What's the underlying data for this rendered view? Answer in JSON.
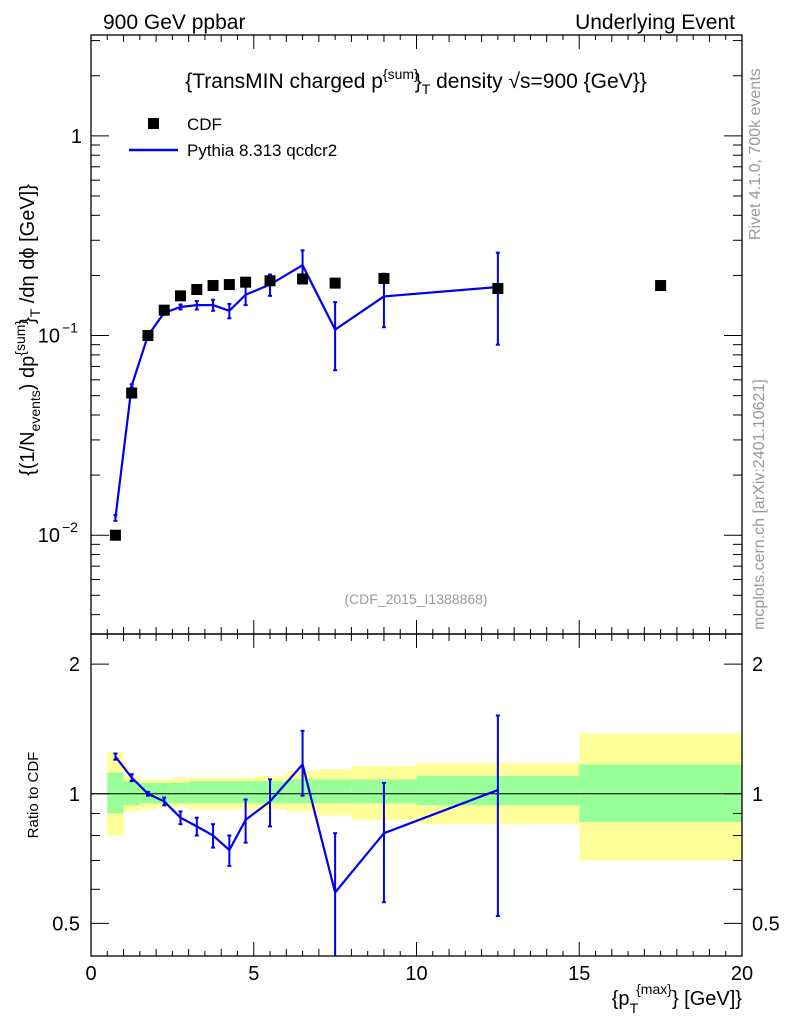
{
  "header": {
    "left": "900 GeV ppbar",
    "right": "Underlying Event"
  },
  "side_labels": {
    "rivet": "Rivet 4.1.0,  700k events",
    "mcplots": "mcplots.cern.ch [arXiv:2401.10621]"
  },
  "main_title": "{TransMIN charged p^{sum}_T density √s=900 {GeV}}",
  "analysis_tag": "(CDF_2015_I1388868)",
  "ylabel_main": "{(1/N_events) dp^{sum}_T /dη dφ [GeV]}",
  "ylabel_ratio": "Ratio to CDF",
  "xlabel": "{p_T^{max}} [GeV]}",
  "colors": {
    "data": "#000000",
    "mc": "#0000ee",
    "band_inner": "#99ff99",
    "band_outer": "#ffff99"
  },
  "chart_data": [
    {
      "type": "scatter",
      "panel": "main",
      "title": "{TransMIN charged p^{sum}_T density √s=900 {GeV}}",
      "xlabel": "{p_T^{max}} [GeV]}",
      "ylabel": "{(1/N_events) dp^{sum}_T /dη dφ [GeV]}",
      "xlim": [
        0,
        20
      ],
      "ylim": [
        0.0032,
        3.2
      ],
      "yscale": "log",
      "y_tick_labels": [
        "10^-2",
        "10^-1",
        "1"
      ],
      "legend": {
        "placement": "top-left",
        "entries": [
          "CDF",
          "Pythia 8.313 qcdcr2"
        ]
      },
      "series": [
        {
          "name": "CDF",
          "style": "markers",
          "x": [
            0.75,
            1.25,
            1.75,
            2.25,
            2.75,
            3.25,
            3.75,
            4.25,
            4.75,
            5.5,
            6.5,
            7.5,
            9.0,
            12.5,
            17.5
          ],
          "y": [
            0.01,
            0.0515,
            0.1,
            0.134,
            0.158,
            0.17,
            0.178,
            0.18,
            0.185,
            0.188,
            0.192,
            0.183,
            0.193,
            0.172,
            0.178
          ]
        },
        {
          "name": "Pythia 8.313 qcdcr2",
          "style": "line",
          "x": [
            0.75,
            1.25,
            1.75,
            2.25,
            2.75,
            3.25,
            3.75,
            4.25,
            4.75,
            5.5,
            6.5,
            7.5,
            9.0,
            12.5
          ],
          "y": [
            0.0122,
            0.056,
            0.1,
            0.13,
            0.139,
            0.142,
            0.142,
            0.133,
            0.16,
            0.18,
            0.225,
            0.107,
            0.157,
            0.175
          ],
          "err_low": [
            0.0004,
            0.001,
            0.001,
            0.003,
            0.004,
            0.007,
            0.009,
            0.011,
            0.018,
            0.022,
            0.035,
            0.04,
            0.047,
            0.085
          ],
          "err_high": [
            0.0004,
            0.001,
            0.001,
            0.003,
            0.004,
            0.007,
            0.009,
            0.011,
            0.018,
            0.022,
            0.042,
            0.04,
            0.047,
            0.085
          ]
        }
      ]
    },
    {
      "type": "line",
      "panel": "ratio",
      "ylabel": "Ratio to CDF",
      "xlabel": "{p_T^{max}} [GeV]}",
      "xlim": [
        0,
        20
      ],
      "ylim": [
        0.42,
        2.35
      ],
      "yscale": "log",
      "x_tick_labels": [
        "0",
        "5",
        "10",
        "15",
        "20"
      ],
      "y_tick_labels": [
        "0.5",
        "1",
        "2"
      ],
      "bands": {
        "x_edges": [
          0.5,
          1.0,
          1.5,
          2.0,
          2.5,
          3.0,
          3.5,
          4.0,
          4.5,
          5.0,
          6.0,
          7.0,
          8.0,
          10.0,
          15.0,
          20.0
        ],
        "inner_low": [
          0.9,
          0.94,
          0.95,
          0.95,
          0.95,
          0.95,
          0.95,
          0.95,
          0.95,
          0.95,
          0.95,
          0.95,
          0.95,
          0.94,
          0.86
        ],
        "inner_high": [
          1.12,
          1.07,
          1.06,
          1.06,
          1.06,
          1.07,
          1.07,
          1.07,
          1.07,
          1.07,
          1.08,
          1.08,
          1.08,
          1.1,
          1.17
        ],
        "outer_low": [
          0.8,
          0.91,
          0.92,
          0.93,
          0.93,
          0.92,
          0.92,
          0.92,
          0.92,
          0.92,
          0.91,
          0.89,
          0.87,
          0.85,
          0.7
        ],
        "outer_high": [
          1.25,
          1.1,
          1.08,
          1.08,
          1.09,
          1.09,
          1.09,
          1.09,
          1.09,
          1.1,
          1.13,
          1.14,
          1.16,
          1.18,
          1.38
        ]
      },
      "series": [
        {
          "name": "Pythia 8.313 qcdcr2",
          "x": [
            0.75,
            1.25,
            1.75,
            2.25,
            2.75,
            3.25,
            3.75,
            4.25,
            4.75,
            5.5,
            6.5,
            7.5,
            9.0,
            12.5
          ],
          "y": [
            1.22,
            1.09,
            1.0,
            0.96,
            0.88,
            0.84,
            0.8,
            0.74,
            0.87,
            0.96,
            1.17,
            0.59,
            0.81,
            1.02
          ],
          "err_low": [
            0.02,
            0.02,
            0.01,
            0.02,
            0.03,
            0.04,
            0.05,
            0.06,
            0.1,
            0.12,
            0.18,
            0.22,
            0.25,
            0.5
          ],
          "err_high": [
            0.02,
            0.02,
            0.01,
            0.02,
            0.03,
            0.04,
            0.05,
            0.06,
            0.1,
            0.12,
            0.23,
            0.22,
            0.25,
            0.5
          ]
        }
      ]
    }
  ]
}
